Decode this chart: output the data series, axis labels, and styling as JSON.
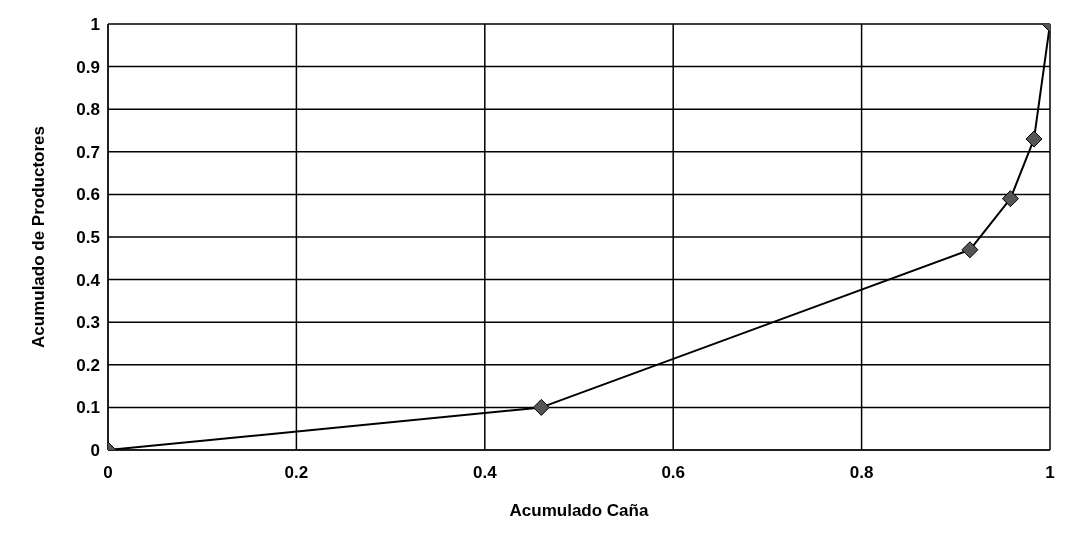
{
  "chart_data": {
    "type": "line",
    "xlabel": "Acumulado Caña",
    "ylabel": "Acumulado de Productores",
    "x": [
      0,
      0.46,
      0.915,
      0.958,
      0.983,
      1
    ],
    "series": [
      {
        "color": "#000000",
        "values": [
          0,
          0.1,
          0.47,
          0.59,
          0.73,
          1
        ]
      }
    ],
    "xlim": [
      0,
      1
    ],
    "xticks": [
      0,
      0.2,
      0.4,
      0.6,
      0.8,
      1
    ],
    "ylim": [
      0,
      1
    ],
    "yticks": [
      0,
      0.1,
      0.2,
      0.3,
      0.4,
      0.5,
      0.6,
      0.7,
      0.8,
      0.9,
      1
    ],
    "grid": true,
    "marker": "diamond",
    "line_style": "solid"
  }
}
